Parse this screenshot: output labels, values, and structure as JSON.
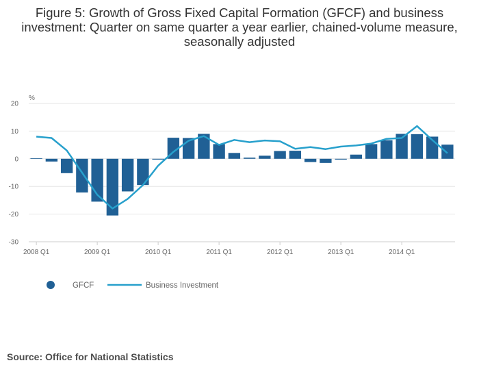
{
  "title": "Figure 5: Growth of Gross Fixed Capital Formation (GFCF) and business investment: Quarter on same quarter a year earlier, chained-volume measure, seasonally adjusted",
  "source": "Source: Office for National Statistics",
  "colors": {
    "bar": "#206095",
    "line": "#27a0cc",
    "grid": "#e6e6e6",
    "axis": "#cccccc"
  },
  "chart_data": {
    "type": "bar+line",
    "title": "Figure 5: Growth of Gross Fixed Capital Formation (GFCF) and business investment: Quarter on same quarter a year earlier, chained-volume measure, seasonally adjusted",
    "ylabel": "%",
    "xlabel": "",
    "ylim": [
      -30,
      20
    ],
    "yticks": [
      20,
      10,
      0,
      -10,
      -20,
      -30
    ],
    "xtick_labels": [
      "2008 Q1",
      "2009 Q1",
      "2010 Q1",
      "2011 Q1",
      "2012 Q1",
      "2013 Q1",
      "2014 Q1"
    ],
    "xtick_indices": [
      0,
      4,
      8,
      12,
      16,
      20,
      24
    ],
    "categories": [
      "2008 Q1",
      "2008 Q2",
      "2008 Q3",
      "2008 Q4",
      "2009 Q1",
      "2009 Q2",
      "2009 Q3",
      "2009 Q4",
      "2010 Q1",
      "2010 Q2",
      "2010 Q3",
      "2010 Q4",
      "2011 Q1",
      "2011 Q2",
      "2011 Q3",
      "2011 Q4",
      "2012 Q1",
      "2012 Q2",
      "2012 Q3",
      "2012 Q4",
      "2013 Q1",
      "2013 Q2",
      "2013 Q3",
      "2013 Q4",
      "2014 Q1",
      "2014 Q2",
      "2014 Q3",
      "2014 Q4"
    ],
    "series": [
      {
        "name": "GFCF",
        "kind": "bar",
        "values": [
          0.2,
          -1.0,
          -5.2,
          -12.2,
          -15.5,
          -20.5,
          -11.8,
          -9.5,
          -0.3,
          7.6,
          7.5,
          9.0,
          5.3,
          2.1,
          0.4,
          1.1,
          2.8,
          2.9,
          -1.2,
          -1.5,
          -0.3,
          1.5,
          5.3,
          6.7,
          9.0,
          8.9,
          8.0,
          5.1
        ]
      },
      {
        "name": "Business Investment",
        "kind": "line",
        "values": [
          8.0,
          7.5,
          3.0,
          -5.0,
          -13.0,
          -18.0,
          -14.5,
          -9.5,
          -2.5,
          2.5,
          6.5,
          8.2,
          5.0,
          6.8,
          6.0,
          6.6,
          6.3,
          3.6,
          4.2,
          3.5,
          4.4,
          4.8,
          5.5,
          7.2,
          7.5,
          11.8,
          6.8,
          2.0
        ]
      }
    ],
    "legend": {
      "position": "bottom-left",
      "entries": [
        "GFCF",
        "Business Investment"
      ]
    }
  }
}
